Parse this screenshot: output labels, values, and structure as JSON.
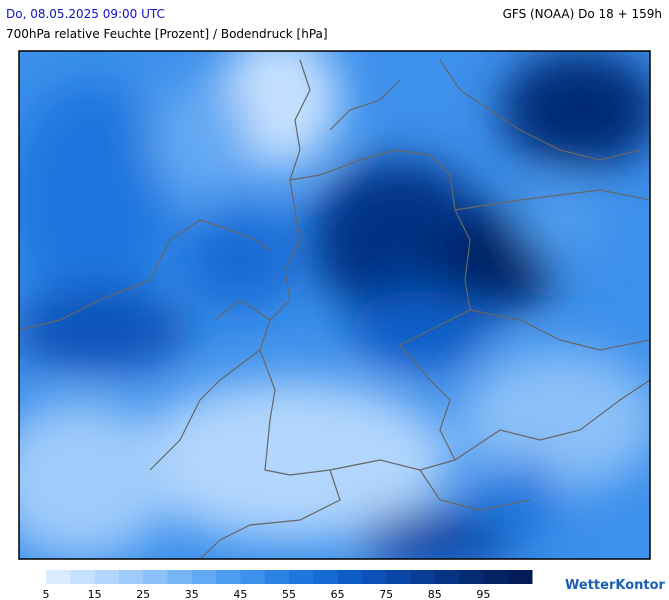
{
  "header": {
    "datetime": "Do, 08.05.2025 09:00 UTC",
    "model": "GFS (NOAA) Do 18 + 159h",
    "subtitle": "700hPa relative Feuchte [Prozent] / Bodendruck [hPa]"
  },
  "legend": {
    "ticks": [
      5,
      15,
      25,
      35,
      45,
      55,
      65,
      75,
      85,
      95
    ],
    "colors": [
      "#d9ecff",
      "#c6e1ff",
      "#b2d6fd",
      "#9fcbfa",
      "#8bc0f8",
      "#77b5f6",
      "#63a9f3",
      "#4f9df0",
      "#3d90ec",
      "#2c83e6",
      "#1e76de",
      "#156ad4",
      "#0e5dc7",
      "#0b51b7",
      "#0946a6",
      "#083c95",
      "#063384",
      "#052b74",
      "#042365",
      "#031c57"
    ]
  },
  "brand": "WetterKontor"
}
